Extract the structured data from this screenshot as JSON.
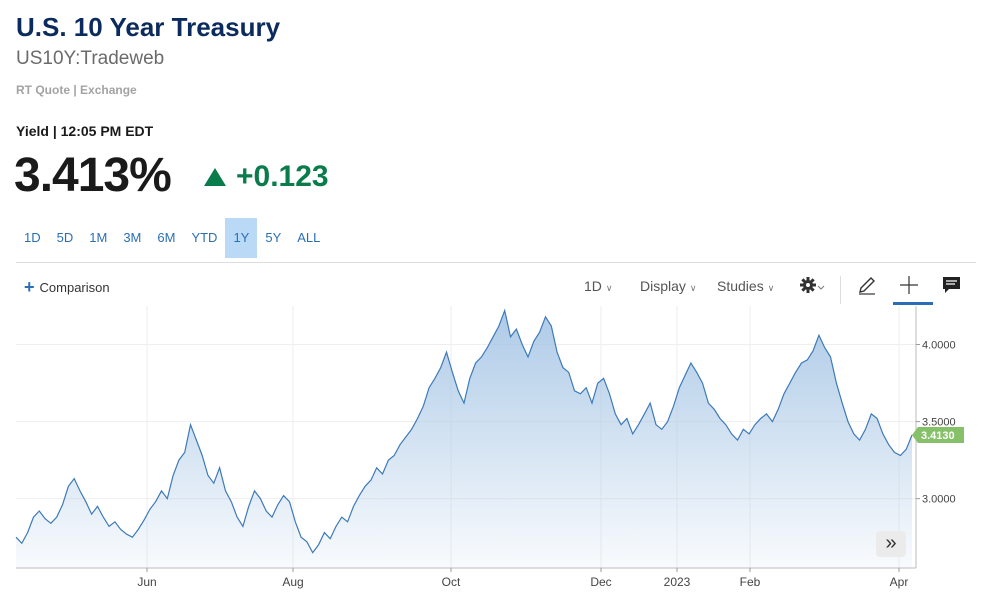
{
  "header": {
    "title": "U.S. 10 Year Treasury",
    "symbol": "US10Y:Tradeweb",
    "meta": "RT Quote | Exchange",
    "yield_time": "Yield | 12:05 PM EDT",
    "price": "3.413%",
    "change": "+0.123",
    "change_direction": "up",
    "change_color": "#0a7b4a"
  },
  "ranges": {
    "items": [
      "1D",
      "5D",
      "1M",
      "3M",
      "6M",
      "YTD",
      "1Y",
      "5Y",
      "ALL"
    ],
    "active": "1Y"
  },
  "toolbar": {
    "comparison_label": "Comparison",
    "interval_label": "1D",
    "display_label": "Display",
    "studies_label": "Studies",
    "icons": [
      "gear-icon",
      "pencil-icon",
      "crosshair-icon",
      "comment-icon"
    ]
  },
  "chart_data": {
    "type": "area",
    "x_tick_labels": [
      "Jun",
      "Aug",
      "Oct",
      "Dec",
      "2023",
      "Feb",
      "Apr"
    ],
    "y_tick_labels": [
      "3.0000",
      "3.5000",
      "4.0000"
    ],
    "ylim": [
      2.55,
      4.25
    ],
    "series": [
      {
        "values": [
          2.75,
          2.71,
          2.78,
          2.88,
          2.92,
          2.87,
          2.84,
          2.88,
          2.96,
          3.08,
          3.13,
          3.05,
          2.98,
          2.9,
          2.95,
          2.88,
          2.82,
          2.85,
          2.8,
          2.77,
          2.75,
          2.8,
          2.86,
          2.93,
          2.98,
          3.05,
          3.0,
          3.15,
          3.25,
          3.3,
          3.48,
          3.38,
          3.28,
          3.15,
          3.1,
          3.2,
          3.05,
          2.98,
          2.88,
          2.82,
          2.95,
          3.05,
          3.0,
          2.92,
          2.88,
          2.96,
          3.02,
          2.98,
          2.85,
          2.75,
          2.72,
          2.65,
          2.7,
          2.78,
          2.74,
          2.82,
          2.88,
          2.85,
          2.95,
          3.02,
          3.08,
          3.12,
          3.2,
          3.16,
          3.25,
          3.28,
          3.35,
          3.4,
          3.45,
          3.52,
          3.6,
          3.72,
          3.78,
          3.85,
          3.95,
          3.82,
          3.7,
          3.62,
          3.78,
          3.88,
          3.92,
          3.98,
          4.05,
          4.12,
          4.22,
          4.05,
          4.1,
          4.0,
          3.92,
          4.02,
          4.08,
          4.18,
          4.12,
          3.95,
          3.85,
          3.82,
          3.7,
          3.68,
          3.72,
          3.62,
          3.75,
          3.78,
          3.68,
          3.55,
          3.48,
          3.52,
          3.42,
          3.48,
          3.55,
          3.62,
          3.48,
          3.45,
          3.5,
          3.6,
          3.72,
          3.8,
          3.88,
          3.82,
          3.75,
          3.62,
          3.58,
          3.52,
          3.48,
          3.42,
          3.38,
          3.45,
          3.42,
          3.48,
          3.52,
          3.55,
          3.5,
          3.58,
          3.68,
          3.75,
          3.82,
          3.88,
          3.9,
          3.96,
          4.06,
          3.98,
          3.92,
          3.75,
          3.62,
          3.5,
          3.42,
          3.38,
          3.45,
          3.55,
          3.52,
          3.42,
          3.35,
          3.3,
          3.28,
          3.32,
          3.413
        ],
        "end_label": "3.4130"
      }
    ],
    "line_color": "#3d7ab8",
    "fill_color": "#aac8e6",
    "end_label_color": "#86c069",
    "grid": true
  }
}
